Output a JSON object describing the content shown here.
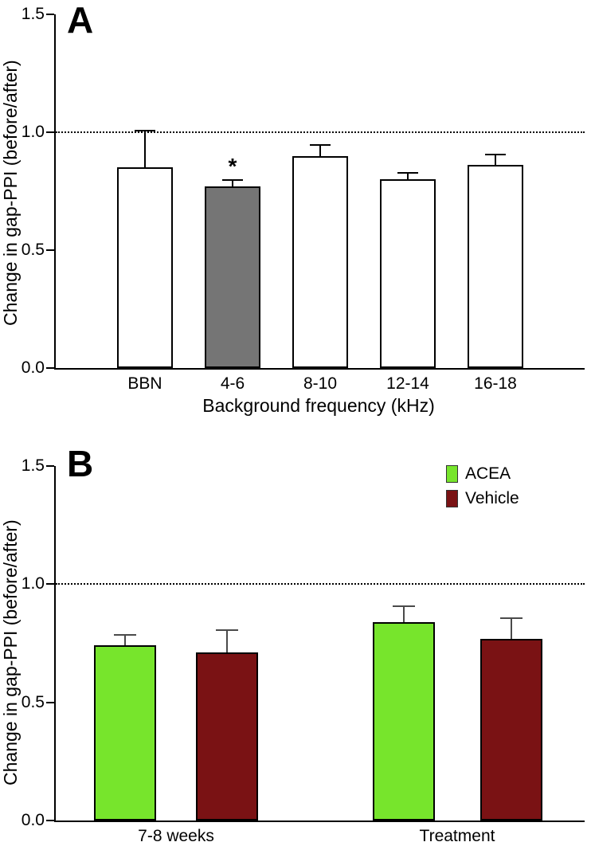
{
  "chart_data": [
    {
      "type": "bar",
      "panel_label": "A",
      "title": "",
      "ylabel": "Change in gap-PPI (before/after)",
      "xlabel": "Background frequency (kHz)",
      "ylim": [
        0,
        1.5
      ],
      "yticks": [
        0,
        0.5,
        1,
        1.5
      ],
      "ytick_labels": [
        "0.0",
        "0.5",
        "1.0",
        "1.5"
      ],
      "reference_line_y": 1,
      "grid": false,
      "categories": [
        "BBN",
        "4-6",
        "8-10",
        "12-14",
        "16-18"
      ],
      "series": [
        {
          "name": "",
          "values": [
            0.85,
            0.77,
            0.9,
            0.8,
            0.86
          ],
          "errors_plus": [
            0.16,
            0.03,
            0.05,
            0.03,
            0.05
          ],
          "colors": [
            "#ffffff",
            "#757575",
            "#ffffff",
            "#ffffff",
            "#ffffff"
          ]
        }
      ],
      "annotations": [
        {
          "category": "4-6",
          "text": "*"
        }
      ]
    },
    {
      "type": "bar",
      "panel_label": "B",
      "title": "",
      "ylabel": "Change in gap-PPI (before/after)",
      "xlabel": "",
      "ylim": [
        0,
        1.5
      ],
      "yticks": [
        0,
        0.5,
        1,
        1.5
      ],
      "ytick_labels": [
        "0.0",
        "0.5",
        "1.0",
        "1.5"
      ],
      "reference_line_y": 1,
      "grid": false,
      "legend": {
        "position": "top-right"
      },
      "categories": [
        "7-8 weeks",
        "Treatment"
      ],
      "series": [
        {
          "name": "ACEA",
          "color": "#77e52c",
          "values": [
            0.74,
            0.84
          ],
          "errors_plus": [
            0.05,
            0.07
          ]
        },
        {
          "name": "Vehicle",
          "color": "#7a1214",
          "values": [
            0.71,
            0.77
          ],
          "errors_plus": [
            0.1,
            0.09
          ]
        }
      ],
      "annotations": []
    }
  ]
}
